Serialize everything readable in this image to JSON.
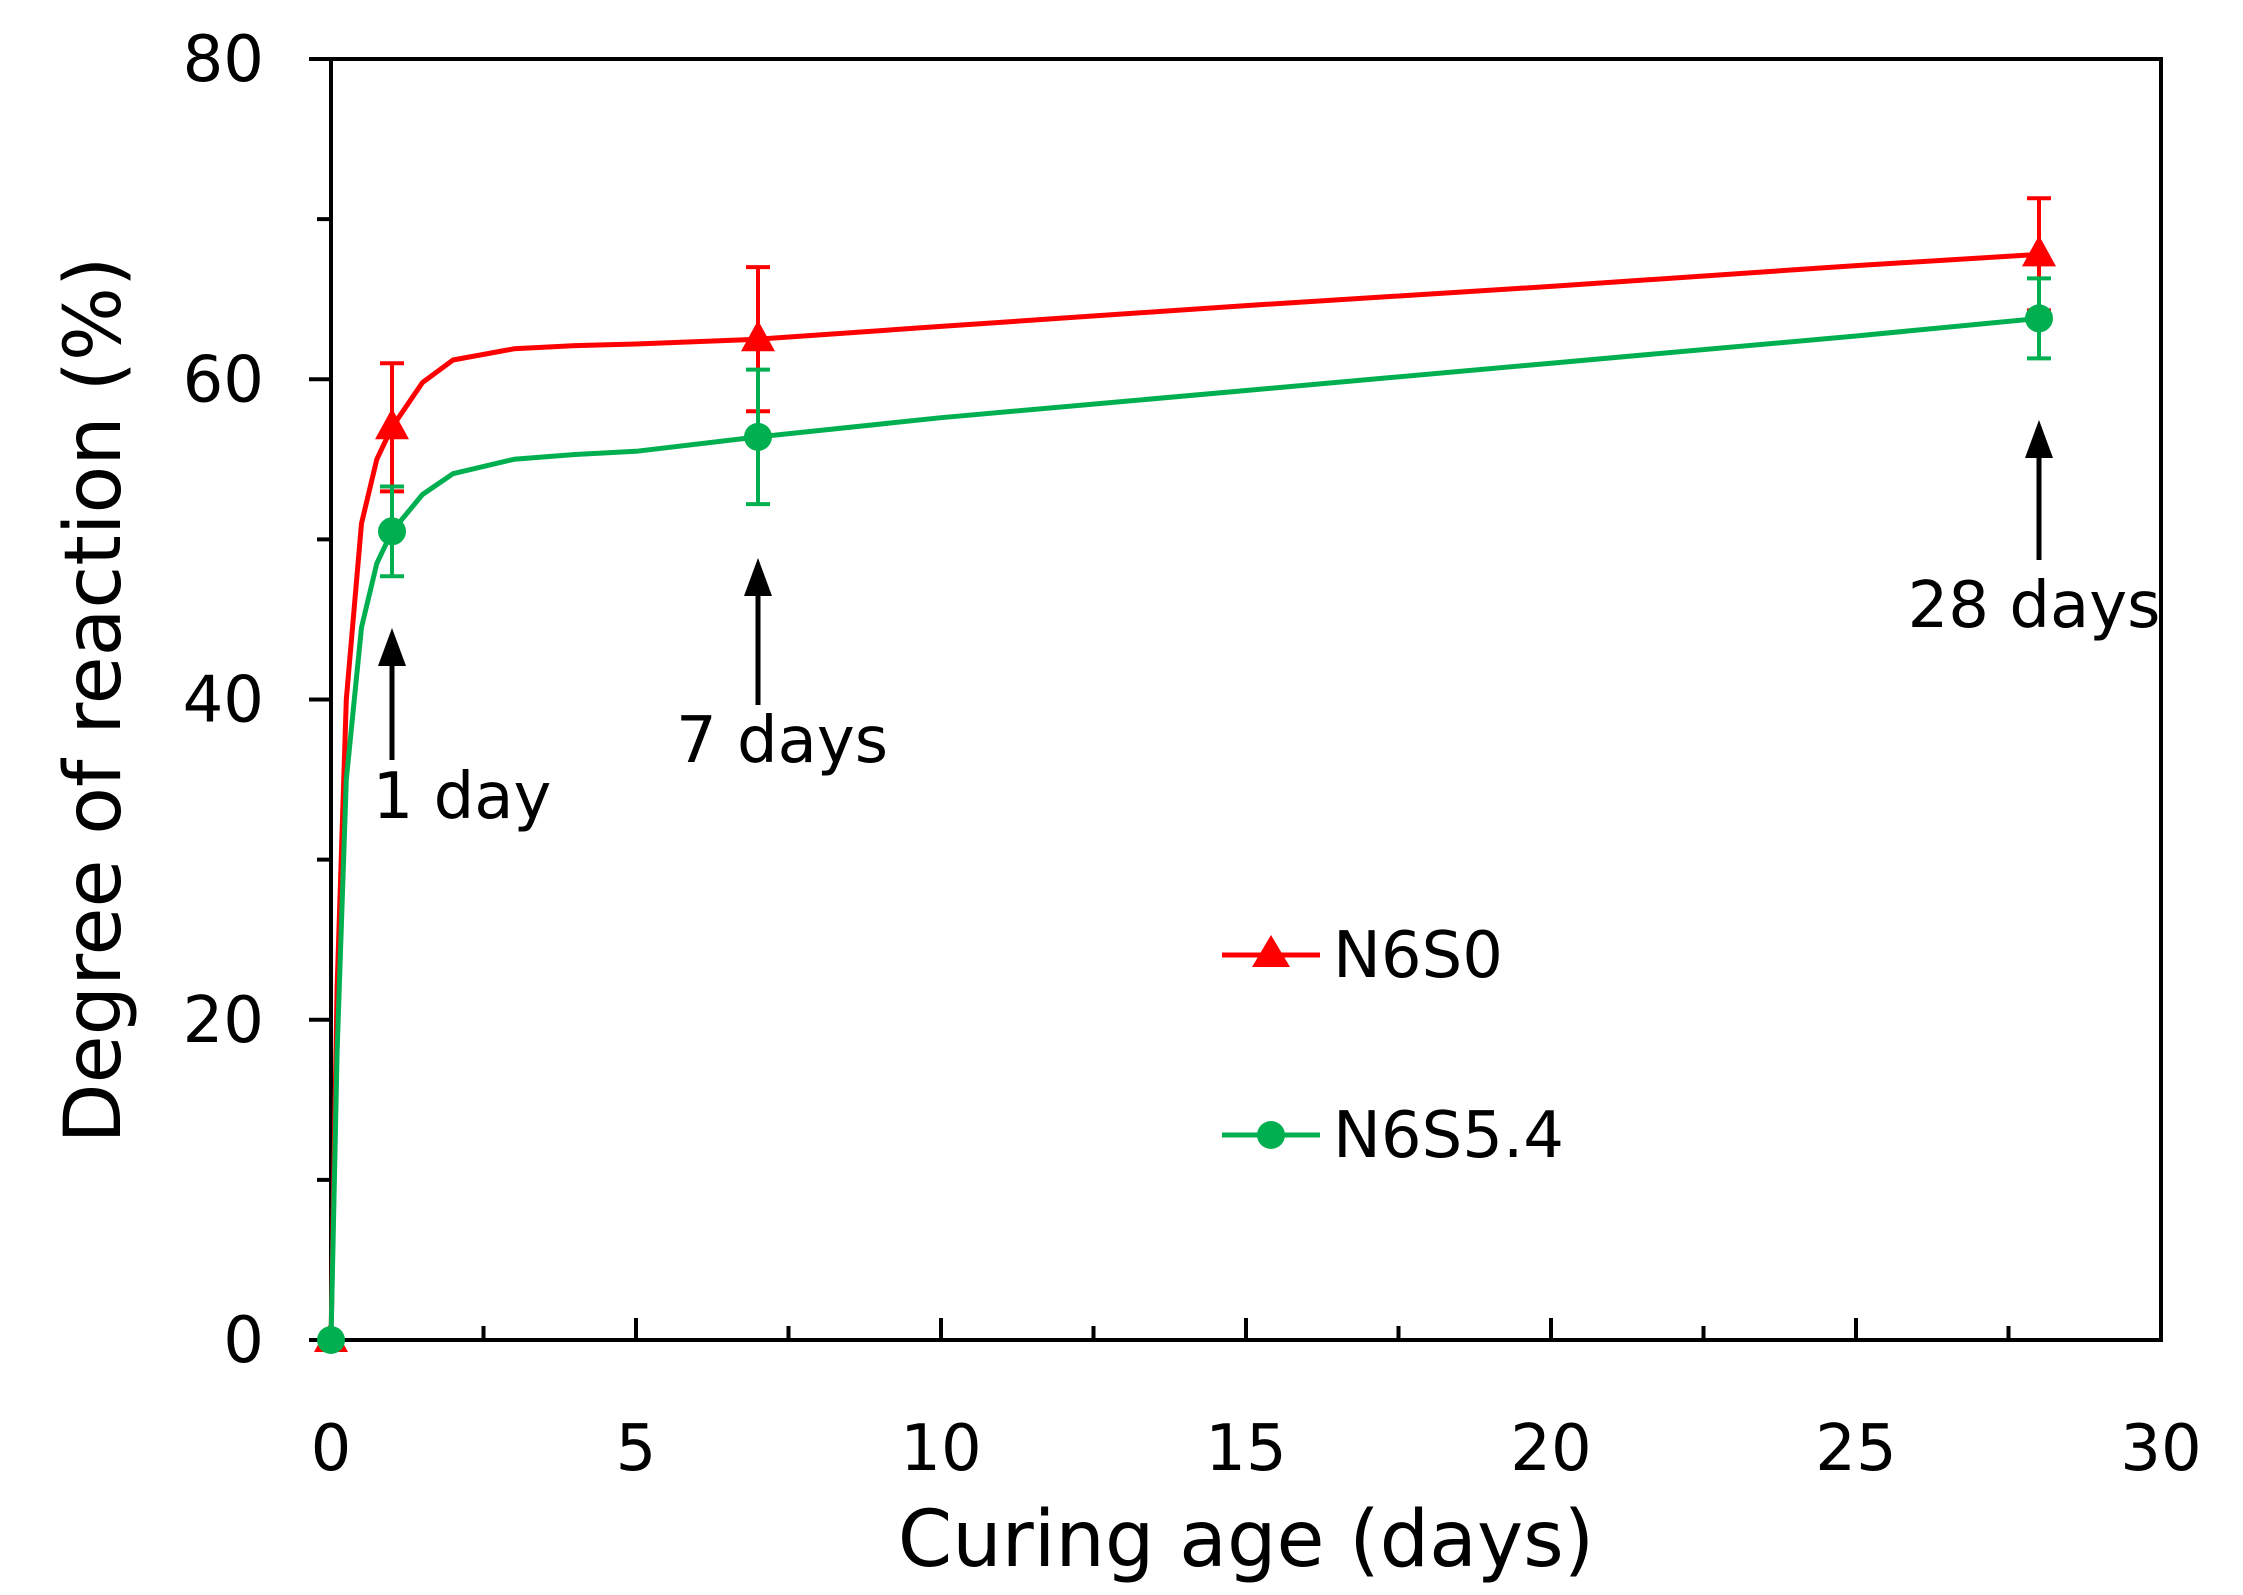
{
  "chart_data": {
    "type": "line",
    "title": "",
    "xlabel": "Curing age (days)",
    "ylabel": "Degree of reaction (%)",
    "xlim": [
      0,
      30
    ],
    "ylim": [
      0,
      80
    ],
    "x_ticks": [
      0,
      5,
      10,
      15,
      20,
      25,
      30
    ],
    "x_tick_labels": [
      "0",
      "5",
      "10",
      "15",
      "20",
      "25",
      "30"
    ],
    "x_minor_step": 2.5,
    "y_ticks": [
      0,
      20,
      40,
      60,
      80
    ],
    "y_tick_labels": [
      "0",
      "20",
      "40",
      "60",
      "80"
    ],
    "y_minor_step": 10,
    "grid": false,
    "legend_position": "center",
    "series": [
      {
        "name": "N6S0",
        "color": "#ff0000",
        "marker": "triangle",
        "points": [
          {
            "x": 0,
            "y": 0,
            "err": 0
          },
          {
            "x": 1,
            "y": 57,
            "err": 4
          },
          {
            "x": 7,
            "y": 62.5,
            "err": 4.5
          },
          {
            "x": 28,
            "y": 67.8,
            "err": 3.5
          }
        ],
        "curve": [
          [
            0,
            0
          ],
          [
            0.1,
            22
          ],
          [
            0.25,
            40
          ],
          [
            0.5,
            51
          ],
          [
            0.75,
            55
          ],
          [
            1,
            57
          ],
          [
            1.5,
            59.8
          ],
          [
            2,
            61.2
          ],
          [
            3,
            61.9
          ],
          [
            4,
            62.1
          ],
          [
            5,
            62.2
          ],
          [
            7,
            62.5
          ],
          [
            10,
            63.3
          ],
          [
            15,
            64.6
          ],
          [
            20,
            65.8
          ],
          [
            25,
            67.1
          ],
          [
            28,
            67.8
          ]
        ]
      },
      {
        "name": "N6S5.4",
        "color": "#00b050",
        "marker": "circle",
        "points": [
          {
            "x": 0,
            "y": 0,
            "err": 0
          },
          {
            "x": 1,
            "y": 50.5,
            "err": 2.8
          },
          {
            "x": 7,
            "y": 56.4,
            "err": 4.2
          },
          {
            "x": 28,
            "y": 63.8,
            "err": 2.5
          }
        ],
        "curve": [
          [
            0,
            0
          ],
          [
            0.1,
            18
          ],
          [
            0.25,
            35
          ],
          [
            0.5,
            44.5
          ],
          [
            0.75,
            48.5
          ],
          [
            1,
            50.5
          ],
          [
            1.5,
            52.8
          ],
          [
            2,
            54.1
          ],
          [
            3,
            55
          ],
          [
            4,
            55.3
          ],
          [
            5,
            55.5
          ],
          [
            7,
            56.4
          ],
          [
            10,
            57.6
          ],
          [
            15,
            59.3
          ],
          [
            20,
            61
          ],
          [
            25,
            62.7
          ],
          [
            28,
            63.8
          ]
        ]
      }
    ],
    "annotations": [
      {
        "text": "1 day",
        "x": 1
      },
      {
        "text": "7 days",
        "x": 7
      },
      {
        "text": "28 days",
        "x": 28
      }
    ]
  }
}
